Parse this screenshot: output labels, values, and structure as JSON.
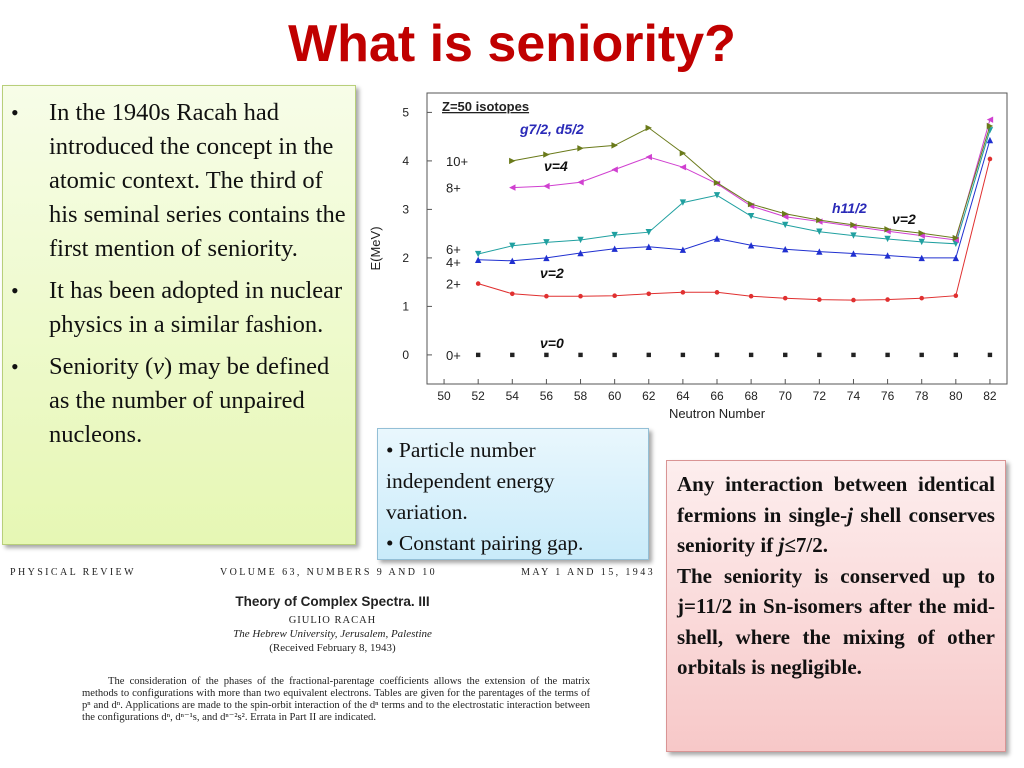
{
  "title": "What is seniority?",
  "bullets": [
    {
      "text_before": "In the 1940s Racah had introduced the concept in the atomic context. The third of his seminal series contains the first mention of seniority."
    },
    {
      "text_before": "It has been adopted in nuclear physics in a similar fashion."
    },
    {
      "text_before": "Seniority (",
      "symbol": "v",
      "text_after": ") may be defined as the number of unpaired nucleons."
    }
  ],
  "bullet_char": "•",
  "blue_box": {
    "items": [
      "Particle number independent energy variation.",
      "Constant pairing gap."
    ]
  },
  "red_box": {
    "p1_before": "Any interaction between identical fermions in single-",
    "p1_j": "j",
    "p1_after": " shell conserves seniority if ",
    "p1_j2": "j",
    "p1_end": "≤7/2.",
    "p2": "The seniority is conserved up to j=11/2 in Sn-isomers after the mid-shell, where the mixing of other orbitals is negligible."
  },
  "paper": {
    "journal": "PHYSICAL REVIEW",
    "volume": "VOLUME 63, NUMBERS 9 AND 10",
    "date": "MAY 1 AND 15, 1943",
    "title": "Theory of Complex Spectra. III",
    "author": "GIULIO RACAH",
    "affiliation": "The Hebrew University, Jerusalem, Palestine",
    "received": "(Received February 8, 1943)",
    "abstract": "The consideration of the phases of the fractional-parentage coefficients allows the extension of the matrix methods to configurations with more than two equivalent electrons. Tables are given for the parentages of the terms of pⁿ and dⁿ. Applications are made to the spin-orbit interaction of the dⁿ terms and to the electrostatic interaction between the configurations dⁿ, dⁿ⁻¹s, and dⁿ⁻²s². Errata in Part II are indicated."
  },
  "chart_data": {
    "type": "line",
    "title": "Z=50 isotopes",
    "xlabel": "Neutron Number",
    "ylabel": "E(MeV)",
    "xlim": [
      49,
      83
    ],
    "ylim": [
      -0.6,
      5.4
    ],
    "xticks": [
      50,
      52,
      54,
      56,
      58,
      60,
      62,
      64,
      66,
      68,
      70,
      72,
      74,
      76,
      78,
      80,
      82
    ],
    "yticks": [
      0,
      1,
      2,
      3,
      4,
      5
    ],
    "annotations": {
      "orbitals_g": "g7/2, d5/2",
      "orbitals_h": "h11/2",
      "v4": "ν=4",
      "v2_low": "ν=2",
      "v2_high": "ν=2",
      "v0": "ν=0",
      "spin_10": "10+",
      "spin_8": "8+",
      "spin_6": "6+",
      "spin_4": "4+",
      "spin_2": "2+",
      "spin_0": "0+"
    },
    "series": [
      {
        "label": "0+",
        "color": "#222222",
        "marker": "square",
        "x": [
          52,
          54,
          56,
          58,
          60,
          62,
          64,
          66,
          68,
          70,
          72,
          74,
          76,
          78,
          80,
          82
        ],
        "values": [
          0,
          0,
          0,
          0,
          0,
          0,
          0,
          0,
          0,
          0,
          0,
          0,
          0,
          0,
          0,
          0
        ]
      },
      {
        "label": "2+",
        "color": "#e03030",
        "marker": "circle",
        "x": [
          52,
          54,
          56,
          58,
          60,
          62,
          64,
          66,
          68,
          70,
          72,
          74,
          76,
          78,
          80,
          82
        ],
        "values": [
          1.47,
          1.26,
          1.21,
          1.21,
          1.22,
          1.26,
          1.29,
          1.29,
          1.21,
          1.17,
          1.14,
          1.13,
          1.14,
          1.17,
          1.22,
          4.04
        ]
      },
      {
        "label": "4+",
        "color": "#2030d0",
        "marker": "triangle-up",
        "x": [
          52,
          54,
          56,
          58,
          60,
          62,
          64,
          66,
          68,
          70,
          72,
          74,
          76,
          78,
          80,
          82
        ],
        "values": [
          1.96,
          1.94,
          2.0,
          2.1,
          2.19,
          2.23,
          2.17,
          2.4,
          2.26,
          2.18,
          2.13,
          2.09,
          2.05,
          2.0,
          2.0,
          4.43
        ]
      },
      {
        "label": "6+",
        "color": "#20a0a0",
        "marker": "triangle-down",
        "x": [
          52,
          54,
          56,
          58,
          60,
          62,
          64,
          66,
          68,
          70,
          72,
          74,
          76,
          78,
          80,
          82
        ],
        "values": [
          2.08,
          2.25,
          2.32,
          2.37,
          2.47,
          2.53,
          3.14,
          3.29,
          2.86,
          2.68,
          2.54,
          2.46,
          2.39,
          2.33,
          2.29,
          4.63
        ]
      },
      {
        "label": "8+",
        "color": "#d040d0",
        "marker": "triangle-left",
        "x": [
          54,
          56,
          58,
          60,
          62,
          64,
          66,
          68,
          70,
          72,
          74,
          76,
          78,
          80,
          82
        ],
        "values": [
          3.45,
          3.48,
          3.56,
          3.82,
          4.08,
          3.87,
          3.53,
          3.07,
          2.85,
          2.75,
          2.65,
          2.55,
          2.46,
          2.37,
          4.85
        ]
      },
      {
        "label": "10+",
        "color": "#6a7a1a",
        "marker": "triangle-right",
        "x": [
          54,
          56,
          58,
          60,
          62,
          64,
          66,
          68,
          70,
          72,
          74,
          76,
          78,
          80,
          82
        ],
        "values": [
          4.0,
          4.13,
          4.26,
          4.32,
          4.68,
          4.16,
          3.55,
          3.11,
          2.91,
          2.78,
          2.68,
          2.59,
          2.51,
          2.41,
          4.72
        ]
      }
    ]
  }
}
